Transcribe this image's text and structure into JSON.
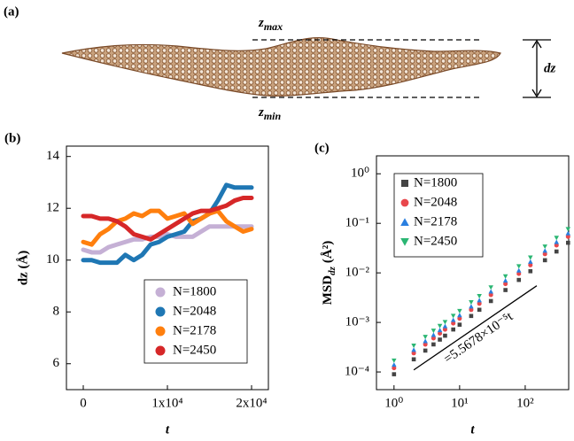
{
  "panel_a": {
    "label": "(a)",
    "top": {
      "symbol": "z",
      "subscript": "max"
    },
    "bottom": {
      "symbol": "z",
      "subscript": "min"
    },
    "height_label": "dz"
  },
  "chart_data": [
    {
      "type": "line",
      "panel_label": "(b)",
      "xlabel": "t",
      "ylabel": "dz (Å)",
      "x": [
        0,
        1000,
        2000,
        3000,
        4000,
        5000,
        6000,
        7000,
        8000,
        9000,
        10000,
        11000,
        12000,
        13000,
        14000,
        15000,
        16000,
        17000,
        18000,
        19000,
        20000
      ],
      "series": [
        {
          "name": "N=1800",
          "color": "#c5b0d5",
          "values": [
            10.4,
            10.3,
            10.3,
            10.5,
            10.6,
            10.7,
            10.8,
            10.8,
            10.9,
            10.9,
            11.0,
            10.9,
            10.9,
            10.9,
            11.1,
            11.3,
            11.3,
            11.3,
            11.3,
            11.3,
            11.3
          ]
        },
        {
          "name": "N=2048",
          "color": "#1f77b4",
          "values": [
            10.0,
            10.0,
            9.9,
            9.9,
            9.9,
            10.2,
            10.0,
            10.2,
            10.6,
            10.7,
            10.9,
            11.0,
            11.1,
            11.5,
            11.6,
            11.8,
            12.3,
            12.9,
            12.8,
            12.8,
            12.8
          ]
        },
        {
          "name": "N=2178",
          "color": "#ff7f0e",
          "values": [
            10.7,
            10.6,
            11.0,
            11.2,
            11.5,
            11.6,
            11.8,
            11.7,
            11.9,
            11.9,
            11.6,
            11.7,
            11.8,
            11.4,
            11.6,
            11.8,
            11.9,
            11.5,
            11.3,
            11.1,
            11.2
          ]
        },
        {
          "name": "N=2450",
          "color": "#d62728",
          "values": [
            11.7,
            11.7,
            11.6,
            11.6,
            11.5,
            11.3,
            11.0,
            10.9,
            10.8,
            11.0,
            11.2,
            11.4,
            11.6,
            11.8,
            11.9,
            11.9,
            12.0,
            12.1,
            12.3,
            12.4,
            12.4
          ]
        }
      ],
      "xlim": [
        -2000,
        22000
      ],
      "ylim": [
        5,
        14.4
      ],
      "xticks": [
        0,
        {
          "value": 10000,
          "label": "1x10⁴"
        },
        {
          "value": 20000,
          "label": "2x10⁴"
        }
      ],
      "yticks": [
        6,
        8,
        10,
        12,
        14
      ],
      "legend": "lower right"
    },
    {
      "type": "scatter",
      "panel_label": "(c)",
      "xlabel": "t",
      "ylabel": {
        "main": "MSD",
        "subscript": "dz",
        "unit": "(Å²)"
      },
      "xscale": "log",
      "yscale": "log",
      "x": [
        1,
        2,
        3,
        4,
        5,
        6,
        8,
        10,
        15,
        20,
        30,
        50,
        80,
        120,
        200,
        300,
        450
      ],
      "series": [
        {
          "name": "N=1800",
          "color": "#444444",
          "marker": "square",
          "values": [
            9e-05,
            0.00018,
            0.00027,
            0.00036,
            0.00045,
            0.00054,
            0.00072,
            0.0009,
            0.00135,
            0.0018,
            0.0027,
            0.0045,
            0.0072,
            0.0108,
            0.018,
            0.027,
            0.0405
          ]
        },
        {
          "name": "N=2048",
          "color": "#e8474c",
          "marker": "circle",
          "values": [
            0.00012,
            0.00024,
            0.00036,
            0.00048,
            0.0006,
            0.00072,
            0.00096,
            0.0012,
            0.0018,
            0.0024,
            0.0036,
            0.006,
            0.0096,
            0.0144,
            0.024,
            0.036,
            0.054
          ]
        },
        {
          "name": "N=2178",
          "color": "#2a7fe0",
          "marker": "triangle",
          "values": [
            0.00014,
            0.00028,
            0.00042,
            0.00056,
            0.0007,
            0.00084,
            0.00112,
            0.0014,
            0.0021,
            0.0028,
            0.0042,
            0.007,
            0.0112,
            0.0168,
            0.028,
            0.042,
            0.063
          ]
        },
        {
          "name": "N=2450",
          "color": "#2bb673",
          "marker": "triangle-down",
          "values": [
            0.00017,
            0.00034,
            0.00051,
            0.00068,
            0.00085,
            0.00102,
            0.00136,
            0.0017,
            0.00255,
            0.0034,
            0.0051,
            0.0085,
            0.0136,
            0.0204,
            0.034,
            0.051,
            0.0765
          ]
        }
      ],
      "fit_line": {
        "text": "=5.5678×10⁻⁵t",
        "x": [
          2,
          150
        ],
        "values": [
          0.00011,
          0.0055
        ]
      },
      "xlim": [
        0.54,
        460
      ],
      "ylim": [
        4.4e-05,
        2.3
      ],
      "xticks": [
        {
          "value": 1,
          "label": "10⁰"
        },
        {
          "value": 10,
          "label": "10¹"
        },
        {
          "value": 100,
          "label": "10²"
        }
      ],
      "yticks": [
        {
          "value": 0.0001,
          "label": "10⁻⁴"
        },
        {
          "value": 0.001,
          "label": "10⁻³"
        },
        {
          "value": 0.01,
          "label": "10⁻²"
        },
        {
          "value": 0.1,
          "label": "10⁻¹"
        },
        {
          "value": 1,
          "label": "10⁰"
        }
      ],
      "legend": "upper left"
    }
  ]
}
